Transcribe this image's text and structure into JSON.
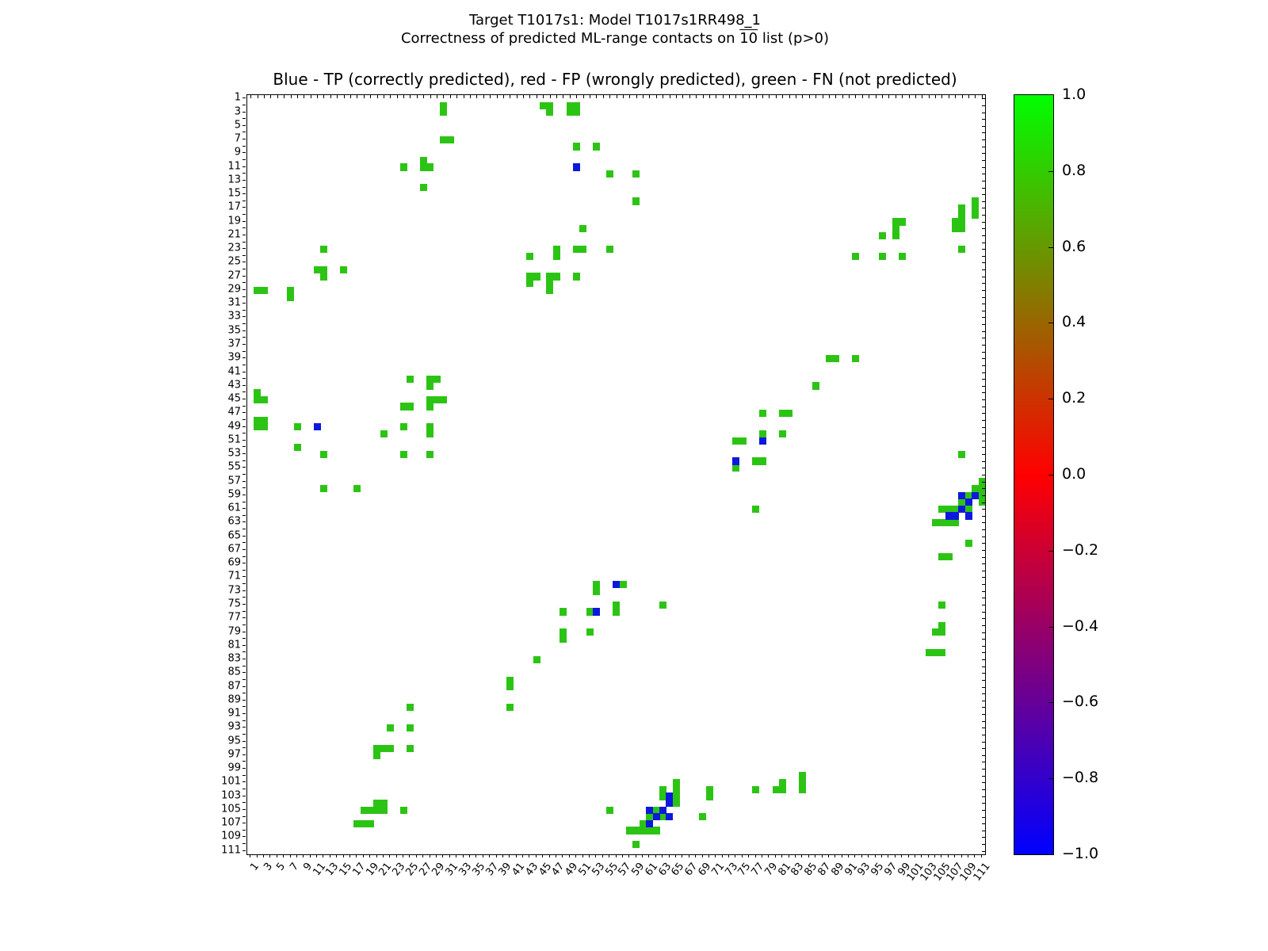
{
  "titles": {
    "suptitle_line1": "Target T1017s1: Model T1017s1RR498_1",
    "suptitle_line2_prefix": "Correctness of predicted ML-range contacts on ",
    "suptitle_line2_overline": "10",
    "suptitle_line2_suffix": " list (p>0)",
    "axes_title": "Blue - TP (correctly predicted), red - FP (wrongly predicted), green - FN (not predicted)"
  },
  "chart_data": {
    "type": "heatmap",
    "title": "Blue - TP (correctly predicted), red - FP (wrongly predicted), green - FN (not predicted)",
    "x_axis": {
      "min": 1,
      "max": 111,
      "tick_every": 1,
      "label_every": 2,
      "tick_labels": [
        1,
        3,
        5,
        7,
        9,
        11,
        13,
        15,
        17,
        19,
        21,
        23,
        25,
        27,
        29,
        31,
        33,
        35,
        37,
        39,
        41,
        43,
        45,
        47,
        49,
        51,
        53,
        55,
        57,
        59,
        61,
        63,
        65,
        67,
        69,
        71,
        73,
        75,
        77,
        79,
        81,
        83,
        85,
        87,
        89,
        91,
        93,
        95,
        97,
        99,
        101,
        103,
        105,
        107,
        109,
        111
      ]
    },
    "y_axis": {
      "min": 1,
      "max": 111,
      "tick_every": 1,
      "label_every": 2,
      "direction": "top-to-bottom",
      "tick_labels": [
        1,
        3,
        5,
        7,
        9,
        11,
        13,
        15,
        17,
        19,
        21,
        23,
        25,
        27,
        29,
        31,
        33,
        35,
        37,
        39,
        41,
        43,
        45,
        47,
        49,
        51,
        53,
        55,
        57,
        59,
        61,
        63,
        65,
        67,
        69,
        71,
        73,
        75,
        77,
        79,
        81,
        83,
        85,
        87,
        89,
        91,
        93,
        95,
        97,
        99,
        101,
        103,
        105,
        107,
        109,
        111
      ]
    },
    "grid": false,
    "colors": {
      "fn_green": "#2cc414",
      "tp_blue": "#0d18dd",
      "fp_red": "#ff0000"
    },
    "cells": {
      "fn_green": [
        [
          30,
          2
        ],
        [
          45,
          2
        ],
        [
          46,
          2
        ],
        [
          49,
          2
        ],
        [
          50,
          2
        ],
        [
          30,
          3
        ],
        [
          46,
          3
        ],
        [
          49,
          3
        ],
        [
          50,
          3
        ],
        [
          30,
          7
        ],
        [
          31,
          7
        ],
        [
          50,
          8
        ],
        [
          53,
          8
        ],
        [
          27,
          10
        ],
        [
          24,
          11
        ],
        [
          27,
          11
        ],
        [
          28,
          11
        ],
        [
          55,
          12
        ],
        [
          59,
          12
        ],
        [
          27,
          14
        ],
        [
          59,
          16
        ],
        [
          110,
          16
        ],
        [
          108,
          17
        ],
        [
          110,
          17
        ],
        [
          108,
          18
        ],
        [
          110,
          18
        ],
        [
          98,
          19
        ],
        [
          99,
          19
        ],
        [
          107,
          19
        ],
        [
          108,
          19
        ],
        [
          98,
          20
        ],
        [
          107,
          20
        ],
        [
          108,
          20
        ],
        [
          51,
          20
        ],
        [
          96,
          21
        ],
        [
          98,
          21
        ],
        [
          12,
          23
        ],
        [
          47,
          23
        ],
        [
          50,
          23
        ],
        [
          51,
          23
        ],
        [
          55,
          23
        ],
        [
          108,
          23
        ],
        [
          43,
          24
        ],
        [
          47,
          24
        ],
        [
          92,
          24
        ],
        [
          96,
          24
        ],
        [
          99,
          24
        ],
        [
          11,
          26
        ],
        [
          12,
          26
        ],
        [
          15,
          26
        ],
        [
          12,
          27
        ],
        [
          43,
          27
        ],
        [
          44,
          27
        ],
        [
          46,
          27
        ],
        [
          47,
          27
        ],
        [
          50,
          27
        ],
        [
          43,
          28
        ],
        [
          46,
          28
        ],
        [
          2,
          29
        ],
        [
          3,
          29
        ],
        [
          7,
          29
        ],
        [
          46,
          29
        ],
        [
          7,
          30
        ],
        [
          88,
          39
        ],
        [
          89,
          39
        ],
        [
          92,
          39
        ],
        [
          25,
          42
        ],
        [
          28,
          42
        ],
        [
          29,
          42
        ],
        [
          28,
          43
        ],
        [
          86,
          43
        ],
        [
          2,
          44
        ],
        [
          2,
          45
        ],
        [
          3,
          45
        ],
        [
          28,
          45
        ],
        [
          29,
          45
        ],
        [
          30,
          45
        ],
        [
          24,
          46
        ],
        [
          25,
          46
        ],
        [
          28,
          46
        ],
        [
          78,
          47
        ],
        [
          81,
          47
        ],
        [
          82,
          47
        ],
        [
          2,
          48
        ],
        [
          3,
          48
        ],
        [
          2,
          49
        ],
        [
          3,
          49
        ],
        [
          8,
          49
        ],
        [
          24,
          49
        ],
        [
          28,
          49
        ],
        [
          21,
          50
        ],
        [
          28,
          50
        ],
        [
          78,
          50
        ],
        [
          81,
          50
        ],
        [
          74,
          51
        ],
        [
          75,
          51
        ],
        [
          8,
          52
        ],
        [
          12,
          53
        ],
        [
          24,
          53
        ],
        [
          28,
          53
        ],
        [
          108,
          53
        ],
        [
          77,
          54
        ],
        [
          78,
          54
        ],
        [
          74,
          55
        ],
        [
          111,
          57
        ],
        [
          12,
          58
        ],
        [
          17,
          58
        ],
        [
          110,
          58
        ],
        [
          111,
          58
        ],
        [
          109,
          59
        ],
        [
          111,
          59
        ],
        [
          108,
          60
        ],
        [
          111,
          60
        ],
        [
          77,
          61
        ],
        [
          105,
          61
        ],
        [
          106,
          61
        ],
        [
          107,
          61
        ],
        [
          109,
          61
        ],
        [
          104,
          63
        ],
        [
          105,
          63
        ],
        [
          106,
          63
        ],
        [
          107,
          63
        ],
        [
          109,
          66
        ],
        [
          105,
          68
        ],
        [
          106,
          68
        ],
        [
          53,
          72
        ],
        [
          57,
          72
        ],
        [
          53,
          73
        ],
        [
          56,
          75
        ],
        [
          63,
          75
        ],
        [
          105,
          75
        ],
        [
          48,
          76
        ],
        [
          52,
          76
        ],
        [
          56,
          76
        ],
        [
          105,
          78
        ],
        [
          48,
          79
        ],
        [
          52,
          79
        ],
        [
          104,
          79
        ],
        [
          105,
          79
        ],
        [
          48,
          80
        ],
        [
          103,
          82
        ],
        [
          104,
          82
        ],
        [
          105,
          82
        ],
        [
          44,
          83
        ],
        [
          40,
          86
        ],
        [
          40,
          87
        ],
        [
          25,
          90
        ],
        [
          40,
          90
        ],
        [
          22,
          93
        ],
        [
          25,
          93
        ],
        [
          20,
          96
        ],
        [
          21,
          96
        ],
        [
          22,
          96
        ],
        [
          25,
          96
        ],
        [
          20,
          97
        ],
        [
          84,
          100
        ],
        [
          65,
          101
        ],
        [
          81,
          101
        ],
        [
          84,
          101
        ],
        [
          63,
          102
        ],
        [
          65,
          102
        ],
        [
          70,
          102
        ],
        [
          77,
          102
        ],
        [
          80,
          102
        ],
        [
          81,
          102
        ],
        [
          84,
          102
        ],
        [
          63,
          103
        ],
        [
          65,
          103
        ],
        [
          70,
          103
        ],
        [
          20,
          104
        ],
        [
          21,
          104
        ],
        [
          65,
          104
        ],
        [
          18,
          105
        ],
        [
          19,
          105
        ],
        [
          20,
          105
        ],
        [
          21,
          105
        ],
        [
          24,
          105
        ],
        [
          55,
          105
        ],
        [
          62,
          105
        ],
        [
          61,
          106
        ],
        [
          63,
          106
        ],
        [
          69,
          106
        ],
        [
          17,
          107
        ],
        [
          18,
          107
        ],
        [
          19,
          107
        ],
        [
          60,
          107
        ],
        [
          58,
          108
        ],
        [
          59,
          108
        ],
        [
          60,
          108
        ],
        [
          61,
          108
        ],
        [
          62,
          108
        ],
        [
          59,
          110
        ]
      ],
      "tp_blue": [
        [
          50,
          11
        ],
        [
          11,
          49
        ],
        [
          78,
          51
        ],
        [
          74,
          54
        ],
        [
          108,
          59
        ],
        [
          110,
          59
        ],
        [
          109,
          60
        ],
        [
          108,
          61
        ],
        [
          106,
          62
        ],
        [
          107,
          62
        ],
        [
          109,
          62
        ],
        [
          56,
          72
        ],
        [
          53,
          76
        ],
        [
          64,
          103
        ],
        [
          64,
          104
        ],
        [
          61,
          105
        ],
        [
          63,
          105
        ],
        [
          62,
          106
        ],
        [
          64,
          106
        ],
        [
          61,
          107
        ]
      ],
      "fp_red": []
    },
    "colorbar": {
      "position": "right",
      "tick_labels": [
        "1.0",
        "0.8",
        "0.6",
        "0.4",
        "0.2",
        "0.0",
        "−0.2",
        "−0.4",
        "−0.6",
        "−0.8",
        "−1.0"
      ],
      "value_top": 1.0,
      "value_bottom": -1.0,
      "gradient_stops": [
        {
          "value": 1.0,
          "color": "#00ff00"
        },
        {
          "value": 0.0,
          "color": "#ff0000"
        },
        {
          "value": -1.0,
          "color": "#0000ff"
        }
      ]
    }
  }
}
